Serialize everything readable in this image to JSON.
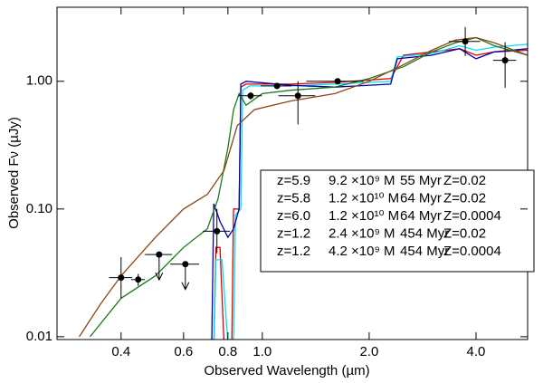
{
  "chart_data": {
    "type": "line",
    "xlabel": "Observed Wavelength (µm)",
    "ylabel": "Observed Fν (µJy)",
    "xscale": "log",
    "yscale": "log",
    "xlim": [
      0.264,
      5.59
    ],
    "ylim": [
      0.0095,
      3.8
    ],
    "xticks": [
      0.4,
      0.6,
      0.8,
      {
        "value": 1.0,
        "label": "1.0"
      },
      {
        "value": 2.0,
        "label": "2.0"
      },
      {
        "value": 4.0,
        "label": "4.0"
      }
    ],
    "yticks": [
      {
        "value": 0.01,
        "label": "0.01"
      },
      {
        "value": 0.1,
        "label": "0.10"
      },
      {
        "value": 1.0,
        "label": "1.00"
      }
    ],
    "series": [
      {
        "legend": [
          "z=5.9",
          "9.2 ×10⁹ M",
          "55 Myr",
          "Z=0.02"
        ],
        "color": "#e00000",
        "x": [
          0.73,
          0.74,
          0.76,
          0.78,
          0.82,
          0.83,
          0.86,
          0.87,
          0.9,
          1.2,
          1.6,
          2.3,
          2.5,
          3.0,
          3.6,
          4.0,
          4.5,
          5.59
        ],
        "values": [
          0.008,
          0.05,
          0.05,
          0.009,
          0.008,
          0.1,
          0.1,
          0.9,
          0.95,
          0.95,
          0.98,
          1.05,
          1.6,
          1.7,
          1.8,
          1.6,
          1.7,
          1.75
        ]
      },
      {
        "legend": [
          "z=5.8",
          "1.2 ×10¹⁰ M",
          "64 Myr",
          "Z=0.02"
        ],
        "color": "#00e0f0",
        "x": [
          0.73,
          0.74,
          0.77,
          0.8,
          0.83,
          0.84,
          0.87,
          0.88,
          0.92,
          1.2,
          1.6,
          2.3,
          2.4,
          3.0,
          3.6,
          4.0,
          4.5,
          5.59
        ],
        "values": [
          0.008,
          0.04,
          0.04,
          0.009,
          0.009,
          0.09,
          0.1,
          0.85,
          0.92,
          0.92,
          0.95,
          1.0,
          1.55,
          1.65,
          1.9,
          1.75,
          1.85,
          1.95
        ]
      },
      {
        "legend": [
          "z=6.0",
          "1.2 ×10¹⁰ M",
          "64 Myr",
          "Z=0.0004"
        ],
        "color": "#0000b0",
        "x": [
          0.72,
          0.73,
          0.76,
          0.8,
          0.83,
          0.86,
          0.87,
          0.9,
          1.2,
          1.6,
          2.3,
          2.4,
          3.0,
          3.6,
          4.0,
          4.5,
          5.59
        ],
        "values": [
          0.008,
          0.11,
          0.08,
          0.06,
          0.07,
          0.1,
          0.95,
          1.0,
          0.93,
          0.9,
          0.95,
          1.5,
          1.6,
          1.8,
          1.5,
          1.7,
          1.8
        ]
      },
      {
        "legend": [
          "z=1.2",
          "2.4 ×10⁹ M",
          "454 Myr",
          "Z=0.02"
        ],
        "color": "#1a7a1a",
        "x": [
          0.327,
          0.4,
          0.5,
          0.6,
          0.7,
          0.75,
          0.8,
          0.83,
          0.86,
          0.9,
          1.0,
          1.2,
          1.6,
          2.0,
          2.5,
          3.0,
          3.5,
          4.0,
          4.5,
          5.59
        ],
        "values": [
          0.01,
          0.02,
          0.03,
          0.05,
          0.07,
          0.12,
          0.3,
          0.6,
          0.8,
          0.65,
          0.8,
          0.85,
          0.9,
          1.05,
          1.3,
          1.7,
          2.0,
          2.2,
          1.9,
          1.6
        ]
      },
      {
        "legend": [
          "z=1.2",
          "4.2 ×10⁹ M",
          "454 Myr",
          "Z=0.0004"
        ],
        "color": "#8b4513",
        "x": [
          0.305,
          0.35,
          0.4,
          0.5,
          0.6,
          0.7,
          0.78,
          0.85,
          0.95,
          1.2,
          1.6,
          2.0,
          2.5,
          3.0,
          3.5,
          4.0,
          4.5,
          5.59
        ],
        "values": [
          0.01,
          0.018,
          0.03,
          0.06,
          0.1,
          0.13,
          0.2,
          0.45,
          0.6,
          0.7,
          0.8,
          1.0,
          1.35,
          1.75,
          2.1,
          2.2,
          2.0,
          1.6
        ]
      }
    ],
    "points": {
      "x": [
        0.4,
        0.447,
        0.512,
        0.607,
        0.745,
        0.927,
        1.1,
        1.26,
        1.63,
        3.73,
        4.83
      ],
      "y": [
        0.029,
        0.028,
        0.044,
        0.037,
        0.067,
        0.77,
        0.92,
        0.77,
        1.0,
        2.05,
        1.46
      ],
      "xerr": [
        0.03,
        0.02,
        0.045,
        0.057,
        0.065,
        0.07,
        0.11,
        0.15,
        0.3,
        0.38,
        0.36
      ],
      "yerr_high": [
        0.013,
        0.003,
        0,
        0,
        0.033,
        0.05,
        0.04,
        0.23,
        0.05,
        0.61,
        0.56
      ],
      "yerr_low": [
        0.009,
        0.003,
        0,
        0,
        0.022,
        0.05,
        0.04,
        0.31,
        0.05,
        0.47,
        0.57
      ],
      "upper_limit": [
        false,
        false,
        true,
        true,
        false,
        false,
        false,
        false,
        false,
        false,
        false
      ],
      "color": "#000000"
    }
  }
}
